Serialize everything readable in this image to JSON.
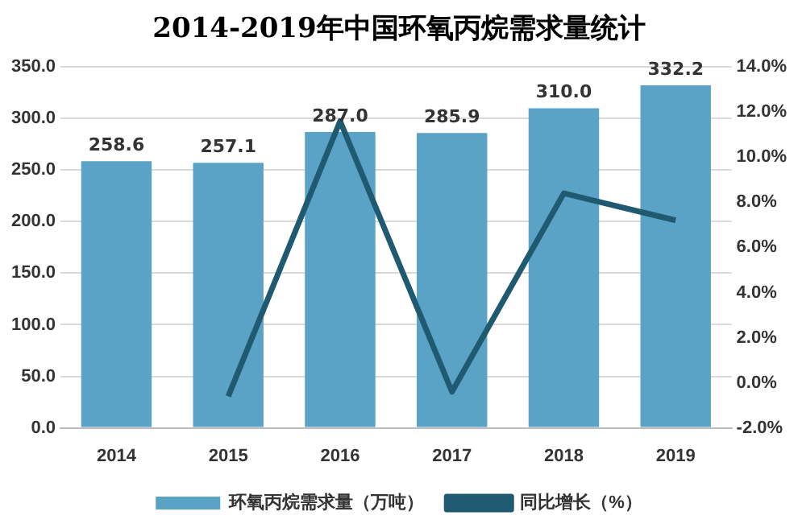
{
  "chart_data": {
    "type": "bar",
    "title": "2014-2019年中国环氧丙烷需求量统计",
    "categories": [
      "2014",
      "2015",
      "2016",
      "2017",
      "2018",
      "2019"
    ],
    "series": [
      {
        "name": "环氧丙烷需求量（万吨）",
        "color": "#5ba3c6",
        "values": [
          258.6,
          257.1,
          287.0,
          285.9,
          310.0,
          332.2
        ],
        "value_labels": [
          "258.6",
          "257.1",
          "287.0",
          "285.9",
          "310.0",
          "332.2"
        ]
      },
      {
        "name": "同比增长（%）",
        "type": "line",
        "axis": "y2",
        "color": "#1f5a70",
        "values": [
          null,
          -0.6,
          11.6,
          -0.4,
          8.4,
          7.2
        ]
      }
    ],
    "ylim": [
      0,
      350
    ],
    "yticks": [
      {
        "value": 0,
        "label": "0.0"
      },
      {
        "value": 50,
        "label": "50.0"
      },
      {
        "value": 100,
        "label": "100.0"
      },
      {
        "value": 150,
        "label": "150.0"
      },
      {
        "value": 200,
        "label": "200.0"
      },
      {
        "value": 250,
        "label": "250.0"
      },
      {
        "value": 300,
        "label": "300.0"
      },
      {
        "value": 350,
        "label": "350.0"
      }
    ],
    "y2lim": [
      -2,
      14
    ],
    "y2ticks": [
      {
        "value": -2,
        "label": "-2.0%"
      },
      {
        "value": 0,
        "label": "0.0%"
      },
      {
        "value": 2,
        "label": "2.0%"
      },
      {
        "value": 4,
        "label": "4.0%"
      },
      {
        "value": 6,
        "label": "6.0%"
      },
      {
        "value": 8,
        "label": "8.0%"
      },
      {
        "value": 10,
        "label": "10.0%"
      },
      {
        "value": 12,
        "label": "12.0%"
      },
      {
        "value": 14,
        "label": "14.0%"
      }
    ],
    "grid": "y",
    "legend": "bottom",
    "marker": "none",
    "line_style": "solid"
  }
}
